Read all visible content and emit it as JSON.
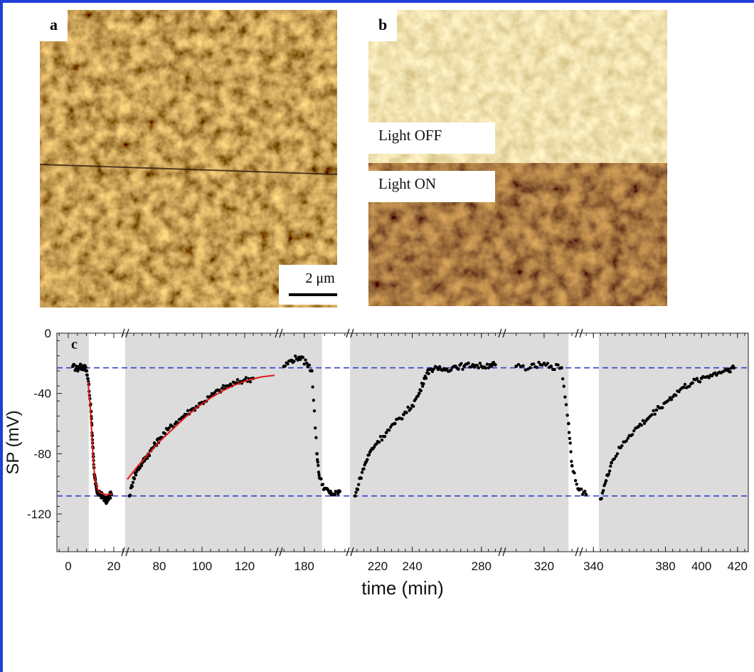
{
  "panels": {
    "a": {
      "letter": "a",
      "scale_bar": "2 μm"
    },
    "b": {
      "letter": "b",
      "label_off": "Light OFF",
      "label_on": "Light ON"
    }
  },
  "chart_data": {
    "type": "scatter",
    "panel_letter": "c",
    "xlabel": "time (min)",
    "ylabel": "SP (mV)",
    "ylim": [
      -145,
      0
    ],
    "yticks": [
      0,
      -40,
      -80,
      -120
    ],
    "reference_lines_mV": [
      -23,
      -108
    ],
    "segments": [
      {
        "xticks": [
          0,
          20
        ],
        "xrange": [
          -5,
          25
        ],
        "gray_until": 9
      },
      {
        "xticks": [
          80,
          100,
          120
        ],
        "xrange": [
          64,
          136
        ]
      },
      {
        "xticks": [
          180
        ],
        "xrange": [
          170,
          198
        ],
        "gray_until": 187
      },
      {
        "xticks": [
          220,
          240,
          280
        ],
        "xrange": [
          204,
          292
        ]
      },
      {
        "xticks": [
          320
        ],
        "xrange": [
          308,
          330
        ],
        "gray_until": 327
      },
      {
        "xticks": [
          340,
          380,
          400,
          420
        ],
        "xrange": [
          332,
          426
        ],
        "white_until": 343
      }
    ],
    "series": [
      {
        "points": [
          [
            2,
            -22
          ],
          [
            4,
            -24
          ],
          [
            5,
            -22
          ],
          [
            6,
            -23
          ],
          [
            7,
            -22
          ],
          [
            8,
            -25
          ],
          [
            9,
            -34
          ],
          [
            10,
            -52
          ],
          [
            10.5,
            -68
          ],
          [
            11,
            -82
          ],
          [
            11.5,
            -94
          ],
          [
            12,
            -100
          ],
          [
            12.5,
            -104
          ],
          [
            13,
            -106
          ],
          [
            14,
            -107
          ],
          [
            15,
            -108
          ],
          [
            16,
            -110
          ],
          [
            17,
            -112
          ],
          [
            18,
            -108
          ],
          [
            19,
            -107
          ]
        ]
      },
      {
        "points": [
          [
            66,
            -108
          ],
          [
            68,
            -96
          ],
          [
            70,
            -90
          ],
          [
            72,
            -86
          ],
          [
            74,
            -82
          ],
          [
            76,
            -78
          ],
          [
            78,
            -74
          ],
          [
            80,
            -70
          ],
          [
            84,
            -64
          ],
          [
            88,
            -59
          ],
          [
            92,
            -54
          ],
          [
            96,
            -50
          ],
          [
            100,
            -46
          ],
          [
            104,
            -42
          ],
          [
            108,
            -38
          ],
          [
            112,
            -35
          ],
          [
            116,
            -33
          ],
          [
            120,
            -31
          ],
          [
            124,
            -30
          ]
        ]
      },
      {
        "points": [
          [
            172,
            -22
          ],
          [
            175,
            -18
          ],
          [
            178,
            -16
          ],
          [
            181,
            -20
          ],
          [
            183,
            -25
          ],
          [
            185,
            -80
          ],
          [
            186,
            -96
          ],
          [
            188,
            -103
          ],
          [
            190,
            -106
          ],
          [
            192,
            -107
          ],
          [
            194,
            -105
          ]
        ]
      },
      {
        "points": [
          [
            207,
            -108
          ],
          [
            210,
            -96
          ],
          [
            213,
            -86
          ],
          [
            216,
            -78
          ],
          [
            220,
            -72
          ],
          [
            225,
            -66
          ],
          [
            230,
            -60
          ],
          [
            235,
            -54
          ],
          [
            240,
            -48
          ],
          [
            244,
            -40
          ],
          [
            247,
            -30
          ],
          [
            250,
            -24
          ],
          [
            255,
            -24
          ],
          [
            260,
            -24
          ],
          [
            265,
            -22
          ],
          [
            270,
            -22
          ],
          [
            275,
            -21
          ],
          [
            280,
            -22
          ],
          [
            285,
            -21
          ],
          [
            288,
            -21
          ]
        ]
      },
      {
        "points": [
          [
            312,
            -22
          ],
          [
            316,
            -23
          ],
          [
            319,
            -21
          ],
          [
            322,
            -22
          ],
          [
            325,
            -23
          ],
          [
            327,
            -60
          ],
          [
            328,
            -88
          ],
          [
            330,
            -104
          ],
          [
            332,
            -107
          ]
        ]
      },
      {
        "points": [
          [
            344,
            -110
          ],
          [
            347,
            -98
          ],
          [
            350,
            -86
          ],
          [
            355,
            -76
          ],
          [
            360,
            -68
          ],
          [
            365,
            -62
          ],
          [
            370,
            -57
          ],
          [
            375,
            -51
          ],
          [
            380,
            -46
          ],
          [
            385,
            -41
          ],
          [
            390,
            -36
          ],
          [
            395,
            -33
          ],
          [
            400,
            -30
          ],
          [
            405,
            -28
          ],
          [
            410,
            -26
          ],
          [
            415,
            -24
          ],
          [
            418,
            -23
          ]
        ]
      }
    ],
    "fit_curves": [
      {
        "segment": 0,
        "points": [
          [
            8.7,
            -32
          ],
          [
            9.5,
            -46
          ],
          [
            10,
            -58
          ],
          [
            10.5,
            -72
          ],
          [
            11,
            -84
          ],
          [
            11.5,
            -93
          ],
          [
            12,
            -99
          ],
          [
            13,
            -104
          ],
          [
            14,
            -106
          ],
          [
            16,
            -107
          ],
          [
            18,
            -107
          ],
          [
            19.5,
            -107
          ]
        ]
      },
      {
        "segment": 1,
        "points": [
          [
            65,
            -97
          ],
          [
            70,
            -88
          ],
          [
            75,
            -80
          ],
          [
            80,
            -72
          ],
          [
            86,
            -64
          ],
          [
            92,
            -56
          ],
          [
            98,
            -49
          ],
          [
            104,
            -43
          ],
          [
            110,
            -38
          ],
          [
            116,
            -34
          ],
          [
            122,
            -31
          ],
          [
            128,
            -29
          ],
          [
            134,
            -28
          ]
        ]
      }
    ]
  }
}
